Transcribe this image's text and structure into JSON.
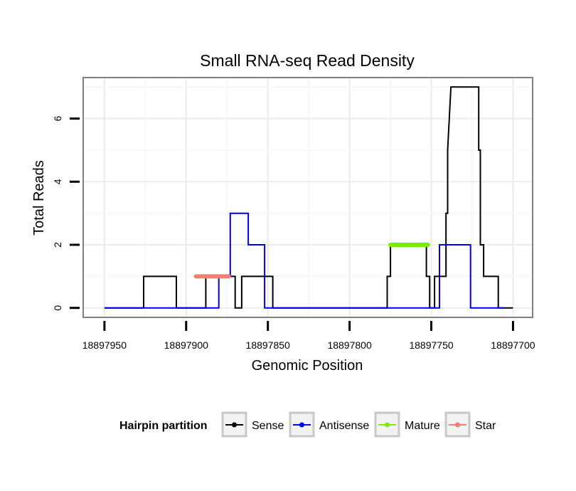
{
  "chart_data": {
    "type": "line",
    "title": "Small RNA-seq Read Density",
    "xlabel": "Genomic Position",
    "ylabel": "Total Reads",
    "xlim": [
      18897963,
      18897688
    ],
    "ylim": [
      -0.3,
      7.3
    ],
    "x_reversed": true,
    "x_ticks": [
      18897950,
      18897900,
      18897850,
      18897800,
      18897750,
      18897700
    ],
    "x_tick_labels": [
      "18897950",
      "18897900",
      "18897850",
      "18897800",
      "18897750",
      "18897700"
    ],
    "y_ticks": [
      0,
      2,
      4,
      6
    ],
    "y_tick_labels": [
      "0",
      "2",
      "4",
      "6"
    ],
    "grid": true,
    "series": [
      {
        "name": "Sense",
        "color": "#000000",
        "points": [
          [
            18897950,
            0
          ],
          [
            18897926,
            0
          ],
          [
            18897926,
            1
          ],
          [
            18897906,
            1
          ],
          [
            18897906,
            0
          ],
          [
            18897888,
            0
          ],
          [
            18897888,
            1
          ],
          [
            18897870,
            1
          ],
          [
            18897870,
            0
          ],
          [
            18897866,
            0
          ],
          [
            18897866,
            1
          ],
          [
            18897847,
            1
          ],
          [
            18897847,
            0
          ],
          [
            18897777,
            0
          ],
          [
            18897777,
            1
          ],
          [
            18897775,
            1
          ],
          [
            18897775,
            2
          ],
          [
            18897753,
            2
          ],
          [
            18897753,
            1
          ],
          [
            18897751,
            1
          ],
          [
            18897751,
            0
          ],
          [
            18897748,
            0
          ],
          [
            18897748,
            1
          ],
          [
            18897741,
            1
          ],
          [
            18897741,
            3
          ],
          [
            18897740,
            3
          ],
          [
            18897740,
            5
          ],
          [
            18897738,
            7
          ],
          [
            18897721,
            7
          ],
          [
            18897721,
            5
          ],
          [
            18897720,
            5
          ],
          [
            18897720,
            2
          ],
          [
            18897718,
            2
          ],
          [
            18897718,
            1
          ],
          [
            18897709,
            1
          ],
          [
            18897709,
            0
          ],
          [
            18897705,
            0
          ],
          [
            18897705,
            0
          ],
          [
            18897700,
            0
          ]
        ]
      },
      {
        "name": "Antisense",
        "color": "#0000ee",
        "points": [
          [
            18897950,
            0
          ],
          [
            18897880,
            0
          ],
          [
            18897880,
            1
          ],
          [
            18897873,
            1
          ],
          [
            18897873,
            3
          ],
          [
            18897862,
            3
          ],
          [
            18897862,
            2
          ],
          [
            18897852,
            2
          ],
          [
            18897852,
            0
          ],
          [
            18897745,
            0
          ],
          [
            18897745,
            2
          ],
          [
            18897726,
            2
          ],
          [
            18897726,
            0
          ],
          [
            18897705,
            0
          ]
        ]
      },
      {
        "name": "Mature",
        "color": "#77ee00",
        "points": [
          [
            18897775,
            2
          ],
          [
            18897752,
            2
          ]
        ]
      },
      {
        "name": "Star",
        "color": "#f08070",
        "points": [
          [
            18897894,
            1
          ],
          [
            18897874,
            1
          ]
        ]
      }
    ],
    "legend": {
      "title": "Hairpin partition",
      "position": "bottom",
      "entries": [
        {
          "label": "Sense",
          "color": "#000000"
        },
        {
          "label": "Antisense",
          "color": "#0000ee"
        },
        {
          "label": "Mature",
          "color": "#77ee00"
        },
        {
          "label": "Star",
          "color": "#f08070"
        }
      ]
    }
  }
}
